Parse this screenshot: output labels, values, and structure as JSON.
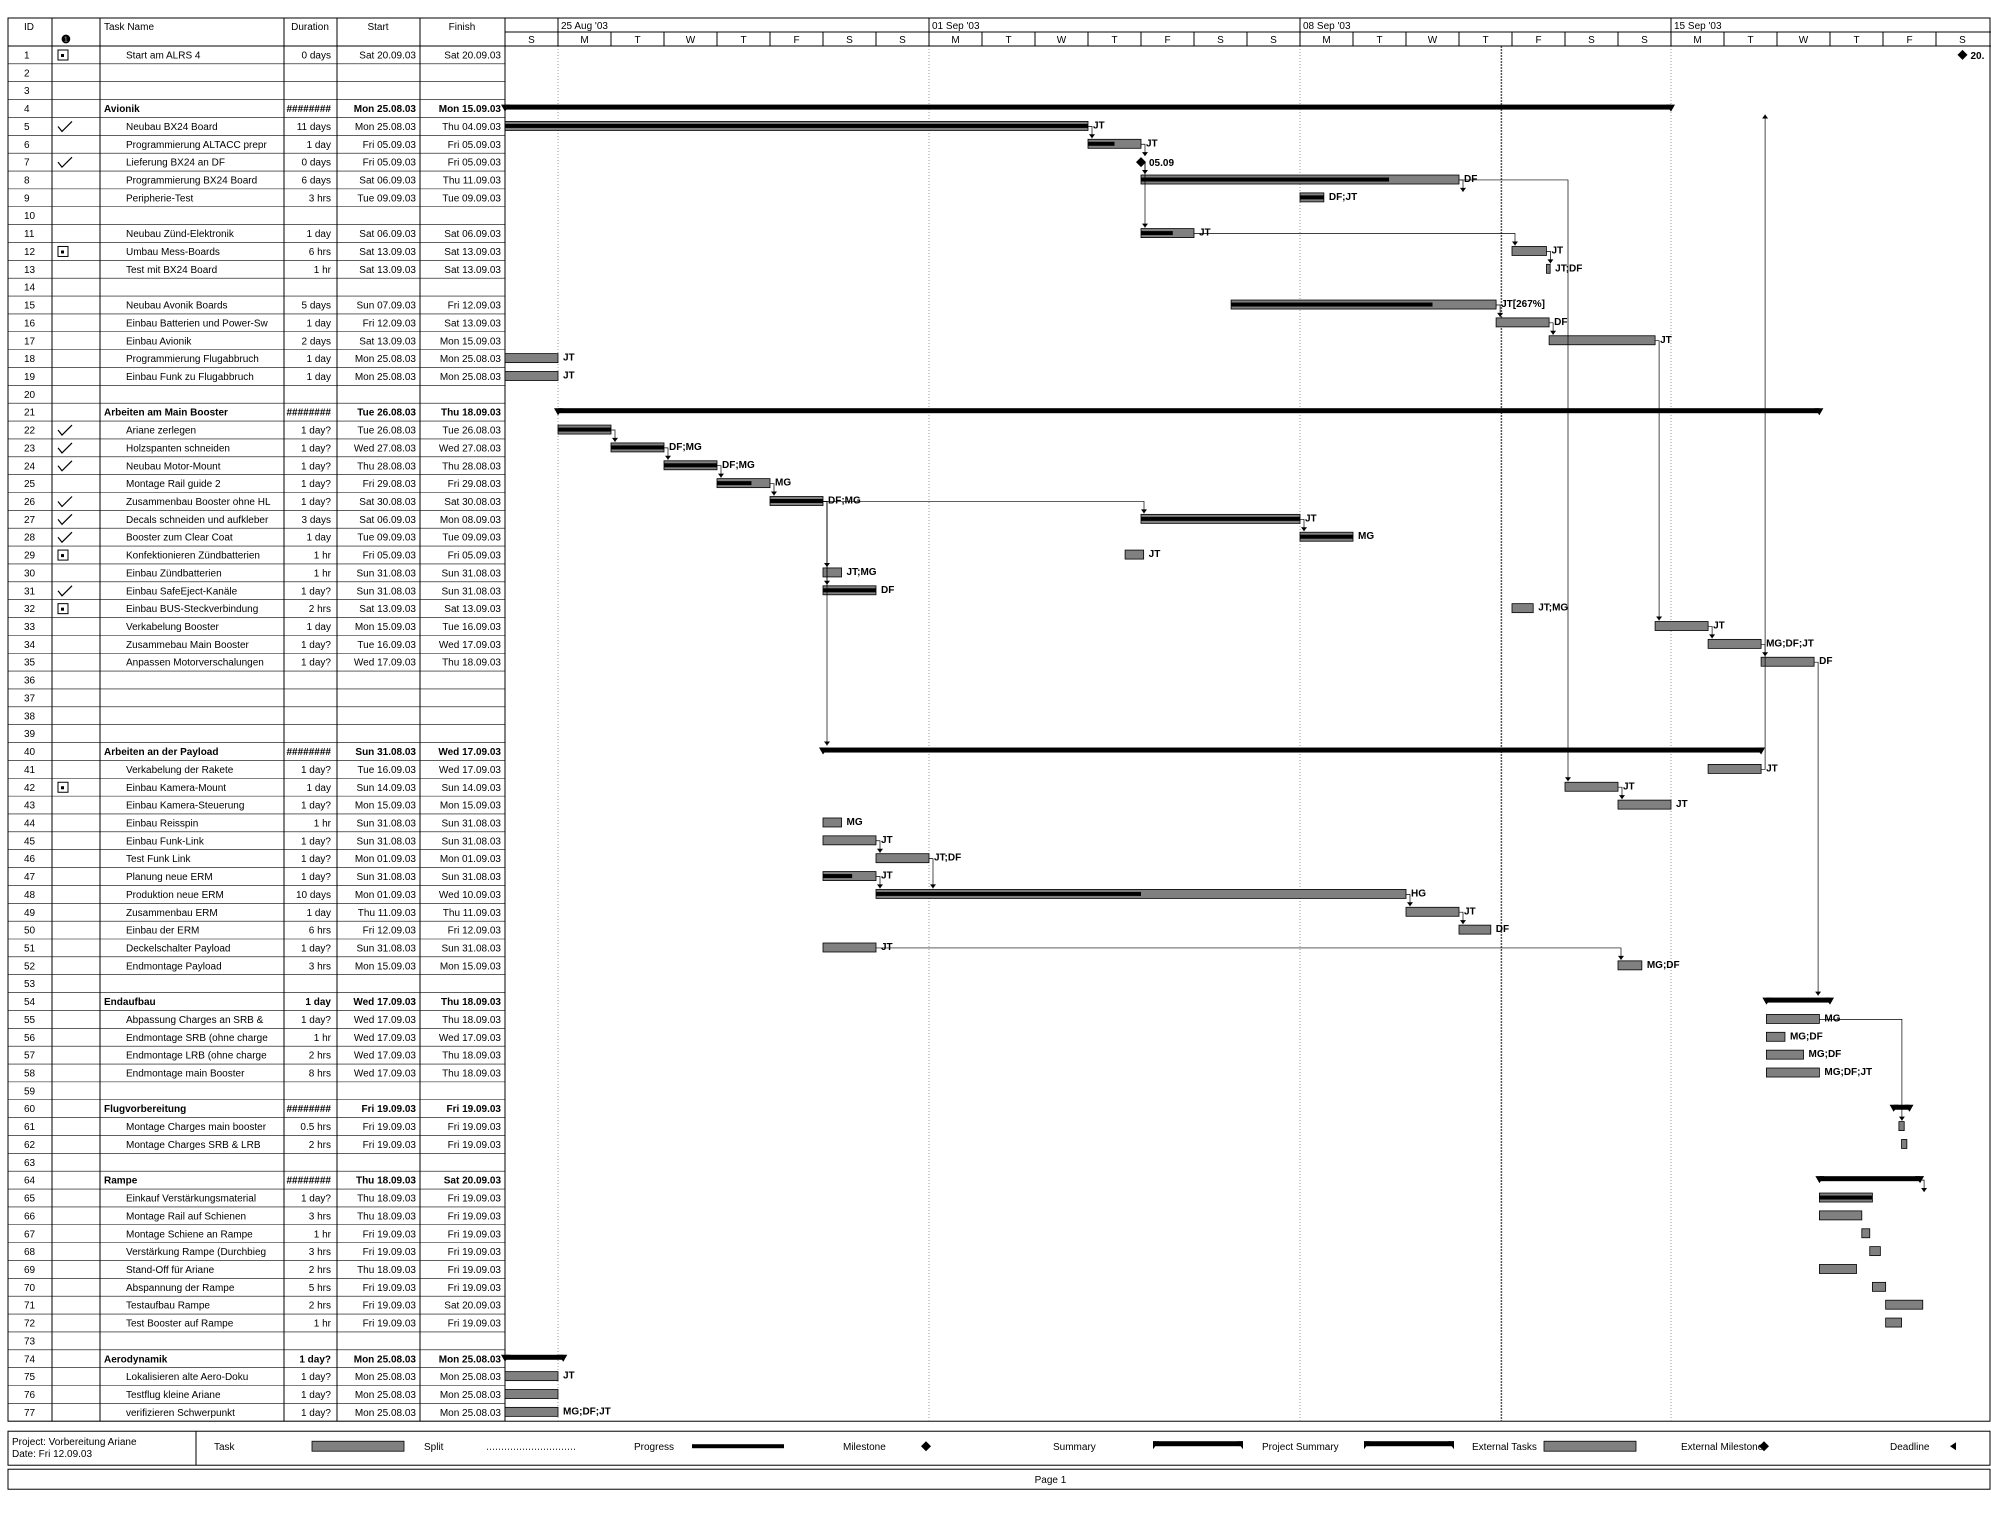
{
  "table": {
    "headers": {
      "id": "ID",
      "task": "Task Name",
      "duration": "Duration",
      "start": "Start",
      "finish": "Finish"
    }
  },
  "timescale": {
    "weeks": [
      "25 Aug '03",
      "01 Sep '03",
      "08 Sep '03",
      "15 Sep '03"
    ],
    "days": [
      "S",
      "M",
      "T",
      "W",
      "T",
      "F",
      "S",
      "S",
      "M",
      "T",
      "W",
      "T",
      "F",
      "S",
      "S",
      "M",
      "T",
      "W",
      "T",
      "F",
      "S",
      "S",
      "M",
      "T",
      "W",
      "T",
      "F",
      "S"
    ]
  },
  "rows": [
    {
      "id": "1",
      "icon": "note-icon",
      "name": "Start am ALRS 4",
      "dur": "0 days",
      "start": "Sat 20.09.03",
      "finish": "Sat 20.09.03",
      "kind": "milestone",
      "bs": 27.5,
      "label": "20."
    },
    {
      "id": "2",
      "name": ""
    },
    {
      "id": "3",
      "name": ""
    },
    {
      "id": "4",
      "name": "Avionik",
      "dur": "########",
      "start": "Mon 25.08.03",
      "finish": "Mon 15.09.03",
      "summary": true,
      "kind": "summary",
      "bs": 0,
      "be": 22
    },
    {
      "id": "5",
      "icon": "check-icon",
      "name": "Neubau BX24 Board",
      "dur": "11 days",
      "start": "Mon 25.08.03",
      "finish": "Thu 04.09.03",
      "kind": "task",
      "bs": 0,
      "be": 11,
      "prog": 1,
      "label": "JT"
    },
    {
      "id": "6",
      "name": "Programmierung ALTACC prepr",
      "dur": "1 day",
      "start": "Fri 05.09.03",
      "finish": "Fri 05.09.03",
      "kind": "task",
      "bs": 11,
      "be": 12,
      "prog": 0.5,
      "label": "JT"
    },
    {
      "id": "7",
      "icon": "check-icon",
      "name": "Lieferung BX24 an DF",
      "dur": "0 days",
      "start": "Fri 05.09.03",
      "finish": "Fri 05.09.03",
      "kind": "milestone",
      "bs": 12,
      "label": "05.09"
    },
    {
      "id": "8",
      "name": "Programmierung BX24 Board",
      "dur": "6 days",
      "start": "Sat 06.09.03",
      "finish": "Thu 11.09.03",
      "kind": "task",
      "bs": 12,
      "be": 18,
      "prog": 0.78,
      "label": "DF"
    },
    {
      "id": "9",
      "name": "Peripherie-Test",
      "dur": "3 hrs",
      "start": "Tue 09.09.03",
      "finish": "Tue 09.09.03",
      "kind": "task",
      "bs": 15,
      "be": 15.45,
      "prog": 1,
      "label": "DF;JT"
    },
    {
      "id": "10",
      "name": ""
    },
    {
      "id": "11",
      "name": "Neubau Zünd-Elektronik",
      "dur": "1 day",
      "start": "Sat 06.09.03",
      "finish": "Sat 06.09.03",
      "kind": "task",
      "bs": 12,
      "be": 13,
      "prog": 0.6,
      "label": "JT"
    },
    {
      "id": "12",
      "icon": "note-icon",
      "name": "Umbau Mess-Boards",
      "dur": "6 hrs",
      "start": "Sat 13.09.03",
      "finish": "Sat 13.09.03",
      "kind": "task",
      "bs": 19,
      "be": 19.65,
      "prog": 0,
      "label": "JT"
    },
    {
      "id": "13",
      "name": "Test mit BX24 Board",
      "dur": "1 hr",
      "start": "Sat 13.09.03",
      "finish": "Sat 13.09.03",
      "kind": "task",
      "bs": 19.65,
      "be": 19.72,
      "prog": 0,
      "label": "JT;DF"
    },
    {
      "id": "14",
      "name": ""
    },
    {
      "id": "15",
      "name": "Neubau Avonik Boards",
      "dur": "5 days",
      "start": "Sun 07.09.03",
      "finish": "Fri 12.09.03",
      "kind": "task",
      "bs": 13.7,
      "be": 18.7,
      "prog": 0.76,
      "label": "JT[267%]"
    },
    {
      "id": "16",
      "name": "Einbau Batterien und Power-Sw",
      "dur": "1 day",
      "start": "Fri 12.09.03",
      "finish": "Sat 13.09.03",
      "kind": "task",
      "bs": 18.7,
      "be": 19.7,
      "prog": 0,
      "label": "DF"
    },
    {
      "id": "17",
      "name": "Einbau Avionik",
      "dur": "2 days",
      "start": "Sat 13.09.03",
      "finish": "Mon 15.09.03",
      "kind": "task",
      "bs": 19.7,
      "be": 21.7,
      "prog": 0,
      "label": "JT"
    },
    {
      "id": "18",
      "name": "Programmierung Flugabbruch",
      "dur": "1 day",
      "start": "Mon 25.08.03",
      "finish": "Mon 25.08.03",
      "kind": "task",
      "bs": 0,
      "be": 1,
      "prog": 0,
      "label": "JT"
    },
    {
      "id": "19",
      "name": "Einbau Funk zu Flugabbruch",
      "dur": "1 day",
      "start": "Mon 25.08.03",
      "finish": "Mon 25.08.03",
      "kind": "task",
      "bs": 0,
      "be": 1,
      "prog": 0,
      "label": "JT"
    },
    {
      "id": "20",
      "name": ""
    },
    {
      "id": "21",
      "name": "Arbeiten am Main Booster",
      "dur": "########",
      "start": "Tue 26.08.03",
      "finish": "Thu 18.09.03",
      "summary": true,
      "kind": "summary",
      "bs": 1,
      "be": 24.8
    },
    {
      "id": "22",
      "icon": "check-icon",
      "name": "Ariane zerlegen",
      "dur": "1 day?",
      "start": "Tue 26.08.03",
      "finish": "Tue 26.08.03",
      "kind": "task",
      "bs": 1,
      "be": 2,
      "prog": 1,
      "label": ""
    },
    {
      "id": "23",
      "icon": "check-icon",
      "name": "Holzspanten schneiden",
      "dur": "1 day?",
      "start": "Wed 27.08.03",
      "finish": "Wed 27.08.03",
      "kind": "task",
      "bs": 2,
      "be": 3,
      "prog": 1,
      "label": "DF;MG"
    },
    {
      "id": "24",
      "icon": "check-icon",
      "name": "Neubau Motor-Mount",
      "dur": "1 day?",
      "start": "Thu 28.08.03",
      "finish": "Thu 28.08.03",
      "kind": "task",
      "bs": 3,
      "be": 4,
      "prog": 1,
      "label": "DF;MG"
    },
    {
      "id": "25",
      "name": "Montage Rail guide 2",
      "dur": "1 day?",
      "start": "Fri 29.08.03",
      "finish": "Fri 29.08.03",
      "kind": "task",
      "bs": 4,
      "be": 5,
      "prog": 0.65,
      "label": "MG"
    },
    {
      "id": "26",
      "icon": "check-icon",
      "name": "Zusammenbau Booster ohne HL",
      "dur": "1 day?",
      "start": "Sat 30.08.03",
      "finish": "Sat 30.08.03",
      "kind": "task",
      "bs": 5,
      "be": 6,
      "prog": 1,
      "label": "DF;MG"
    },
    {
      "id": "27",
      "icon": "check-icon",
      "name": "Decals schneiden und aufkleber",
      "dur": "3 days",
      "start": "Sat 06.09.03",
      "finish": "Mon 08.09.03",
      "kind": "task",
      "bs": 12,
      "be": 15,
      "prog": 1,
      "label": "JT"
    },
    {
      "id": "28",
      "icon": "check-icon",
      "name": "Booster zum Clear Coat",
      "dur": "1 day",
      "start": "Tue 09.09.03",
      "finish": "Tue 09.09.03",
      "kind": "task",
      "bs": 15,
      "be": 16,
      "prog": 1,
      "label": "MG"
    },
    {
      "id": "29",
      "icon": "note-icon",
      "name": "Konfektionieren Zündbatterien",
      "dur": "1 hr",
      "start": "Fri 05.09.03",
      "finish": "Fri 05.09.03",
      "kind": "task",
      "bs": 11.7,
      "be": 12.05,
      "prog": 0,
      "label": "JT"
    },
    {
      "id": "30",
      "name": "Einbau Zündbatterien",
      "dur": "1 hr",
      "start": "Sun 31.08.03",
      "finish": "Sun 31.08.03",
      "kind": "task",
      "bs": 6,
      "be": 6.35,
      "prog": 0,
      "label": "JT;MG"
    },
    {
      "id": "31",
      "icon": "check-icon",
      "name": "Einbau SafeEject-Kanäle",
      "dur": "1 day?",
      "start": "Sun 31.08.03",
      "finish": "Sun 31.08.03",
      "kind": "task",
      "bs": 6,
      "be": 7,
      "prog": 1,
      "label": "DF"
    },
    {
      "id": "32",
      "icon": "note-icon",
      "name": "Einbau BUS-Steckverbindung",
      "dur": "2 hrs",
      "start": "Sat 13.09.03",
      "finish": "Sat 13.09.03",
      "kind": "task",
      "bs": 19,
      "be": 19.4,
      "prog": 0,
      "label": "JT;MG"
    },
    {
      "id": "33",
      "name": "Verkabelung Booster",
      "dur": "1 day",
      "start": "Mon 15.09.03",
      "finish": "Tue 16.09.03",
      "kind": "task",
      "bs": 21.7,
      "be": 22.7,
      "prog": 0,
      "label": "JT"
    },
    {
      "id": "34",
      "name": "Zusammebau Main Booster",
      "dur": "1 day?",
      "start": "Tue 16.09.03",
      "finish": "Wed 17.09.03",
      "kind": "task",
      "bs": 22.7,
      "be": 23.7,
      "prog": 0,
      "label": "MG;DF;JT"
    },
    {
      "id": "35",
      "name": "Anpassen Motorverschalungen",
      "dur": "1 day?",
      "start": "Wed 17.09.03",
      "finish": "Thu 18.09.03",
      "kind": "task",
      "bs": 23.7,
      "be": 24.7,
      "prog": 0,
      "label": "DF"
    },
    {
      "id": "36",
      "name": ""
    },
    {
      "id": "37",
      "name": ""
    },
    {
      "id": "38",
      "name": ""
    },
    {
      "id": "39",
      "name": ""
    },
    {
      "id": "40",
      "name": "Arbeiten an der Payload",
      "dur": "########",
      "start": "Sun 31.08.03",
      "finish": "Wed 17.09.03",
      "summary": true,
      "kind": "summary",
      "bs": 6,
      "be": 23.7
    },
    {
      "id": "41",
      "name": "Verkabelung der Rakete",
      "dur": "1 day?",
      "start": "Tue 16.09.03",
      "finish": "Wed 17.09.03",
      "kind": "task",
      "bs": 22.7,
      "be": 23.7,
      "prog": 0,
      "label": "JT"
    },
    {
      "id": "42",
      "icon": "note-icon",
      "name": "Einbau Kamera-Mount",
      "dur": "1 day",
      "start": "Sun 14.09.03",
      "finish": "Sun 14.09.03",
      "kind": "task",
      "bs": 20,
      "be": 21,
      "prog": 0,
      "label": "JT"
    },
    {
      "id": "43",
      "name": "Einbau Kamera-Steuerung",
      "dur": "1 day?",
      "start": "Mon 15.09.03",
      "finish": "Mon 15.09.03",
      "kind": "task",
      "bs": 21,
      "be": 22,
      "prog": 0,
      "label": "JT"
    },
    {
      "id": "44",
      "name": "Einbau Reisspin",
      "dur": "1 hr",
      "start": "Sun 31.08.03",
      "finish": "Sun 31.08.03",
      "kind": "task",
      "bs": 6,
      "be": 6.35,
      "prog": 0,
      "label": "MG"
    },
    {
      "id": "45",
      "name": "Einbau Funk-Link",
      "dur": "1 day?",
      "start": "Sun 31.08.03",
      "finish": "Sun 31.08.03",
      "kind": "task",
      "bs": 6,
      "be": 7,
      "prog": 0,
      "label": "JT"
    },
    {
      "id": "46",
      "name": "Test Funk Link",
      "dur": "1 day?",
      "start": "Mon 01.09.03",
      "finish": "Mon 01.09.03",
      "kind": "task",
      "bs": 7,
      "be": 8,
      "prog": 0,
      "label": "JT;DF"
    },
    {
      "id": "47",
      "name": "Planung neue ERM",
      "dur": "1 day?",
      "start": "Sun 31.08.03",
      "finish": "Sun 31.08.03",
      "kind": "task",
      "bs": 6,
      "be": 7,
      "prog": 0.55,
      "label": "JT"
    },
    {
      "id": "48",
      "name": "Produktion neue ERM",
      "dur": "10 days",
      "start": "Mon 01.09.03",
      "finish": "Wed 10.09.03",
      "kind": "task",
      "bs": 7,
      "be": 17,
      "prog": 0.5,
      "label": "HG"
    },
    {
      "id": "49",
      "name": "Zusammenbau ERM",
      "dur": "1 day",
      "start": "Thu 11.09.03",
      "finish": "Thu 11.09.03",
      "kind": "task",
      "bs": 17,
      "be": 18,
      "prog": 0,
      "label": "JT"
    },
    {
      "id": "50",
      "name": "Einbau der ERM",
      "dur": "6 hrs",
      "start": "Fri 12.09.03",
      "finish": "Fri 12.09.03",
      "kind": "task",
      "bs": 18,
      "be": 18.6,
      "prog": 0,
      "label": "DF"
    },
    {
      "id": "51",
      "name": "Deckelschalter Payload",
      "dur": "1 day?",
      "start": "Sun 31.08.03",
      "finish": "Sun 31.08.03",
      "kind": "task",
      "bs": 6,
      "be": 7,
      "prog": 0,
      "label": "JT"
    },
    {
      "id": "52",
      "name": "Endmontage Payload",
      "dur": "3 hrs",
      "start": "Mon 15.09.03",
      "finish": "Mon 15.09.03",
      "kind": "task",
      "bs": 21,
      "be": 21.45,
      "prog": 0,
      "label": "MG;DF"
    },
    {
      "id": "53",
      "name": ""
    },
    {
      "id": "54",
      "name": "Endaufbau",
      "dur": "1 day",
      "start": "Wed 17.09.03",
      "finish": "Thu 18.09.03",
      "summary": true,
      "kind": "summary",
      "bs": 23.8,
      "be": 25
    },
    {
      "id": "55",
      "name": "Abpassung Charges an SRB &",
      "dur": "1 day?",
      "start": "Wed 17.09.03",
      "finish": "Thu 18.09.03",
      "kind": "task",
      "bs": 23.8,
      "be": 24.8,
      "prog": 0,
      "label": "MG"
    },
    {
      "id": "56",
      "name": "Endmontage SRB (ohne charge",
      "dur": "1 hr",
      "start": "Wed 17.09.03",
      "finish": "Wed 17.09.03",
      "kind": "task",
      "bs": 23.8,
      "be": 24.15,
      "prog": 0,
      "label": "MG;DF"
    },
    {
      "id": "57",
      "name": "Endmontage LRB (ohne charge",
      "dur": "2 hrs",
      "start": "Wed 17.09.03",
      "finish": "Thu 18.09.03",
      "kind": "task",
      "bs": 23.8,
      "be": 24.5,
      "prog": 0,
      "label": "MG;DF"
    },
    {
      "id": "58",
      "name": "Endmontage main Booster",
      "dur": "8 hrs",
      "start": "Wed 17.09.03",
      "finish": "Thu 18.09.03",
      "kind": "task",
      "bs": 23.8,
      "be": 24.8,
      "prog": 0,
      "label": "MG;DF;JT"
    },
    {
      "id": "59",
      "name": ""
    },
    {
      "id": "60",
      "name": "Flugvorbereitung",
      "dur": "########",
      "start": "Fri 19.09.03",
      "finish": "Fri 19.09.03",
      "summary": true,
      "kind": "summary",
      "bs": 26.2,
      "be": 26.5
    },
    {
      "id": "61",
      "name": "Montage Charges main booster",
      "dur": "0.5 hrs",
      "start": "Fri 19.09.03",
      "finish": "Fri 19.09.03",
      "kind": "task",
      "bs": 26.3,
      "be": 26.4,
      "prog": 0,
      "label": ""
    },
    {
      "id": "62",
      "name": "Montage Charges SRB & LRB",
      "dur": "2 hrs",
      "start": "Fri 19.09.03",
      "finish": "Fri 19.09.03",
      "kind": "task",
      "bs": 26.35,
      "be": 26.45,
      "prog": 0,
      "label": ""
    },
    {
      "id": "63",
      "name": ""
    },
    {
      "id": "64",
      "name": "Rampe",
      "dur": "########",
      "start": "Thu 18.09.03",
      "finish": "Sat 20.09.03",
      "summary": true,
      "kind": "summary",
      "bs": 24.8,
      "be": 26.7
    },
    {
      "id": "65",
      "name": "Einkauf Verstärkungsmaterial",
      "dur": "1 day?",
      "start": "Thu 18.09.03",
      "finish": "Fri 19.09.03",
      "kind": "task",
      "bs": 24.8,
      "be": 25.8,
      "prog": 1,
      "label": ""
    },
    {
      "id": "66",
      "name": "Montage Rail auf Schienen",
      "dur": "3 hrs",
      "start": "Thu 18.09.03",
      "finish": "Fri 19.09.03",
      "kind": "task",
      "bs": 24.8,
      "be": 25.6,
      "prog": 0,
      "label": ""
    },
    {
      "id": "67",
      "name": "Montage Schiene an Rampe",
      "dur": "1 hr",
      "start": "Fri 19.09.03",
      "finish": "Fri 19.09.03",
      "kind": "task",
      "bs": 25.6,
      "be": 25.75,
      "prog": 0,
      "label": ""
    },
    {
      "id": "68",
      "name": "Verstärkung Rampe (Durchbieg",
      "dur": "3 hrs",
      "start": "Fri 19.09.03",
      "finish": "Fri 19.09.03",
      "kind": "task",
      "bs": 25.75,
      "be": 25.95,
      "prog": 0,
      "label": ""
    },
    {
      "id": "69",
      "name": "Stand-Off für Ariane",
      "dur": "2 hrs",
      "start": "Thu 18.09.03",
      "finish": "Fri 19.09.03",
      "kind": "task",
      "bs": 24.8,
      "be": 25.5,
      "prog": 0,
      "label": ""
    },
    {
      "id": "70",
      "name": "Abspannung der Rampe",
      "dur": "5 hrs",
      "start": "Fri 19.09.03",
      "finish": "Fri 19.09.03",
      "kind": "task",
      "bs": 25.8,
      "be": 26.05,
      "prog": 0,
      "label": ""
    },
    {
      "id": "71",
      "name": "Testaufbau Rampe",
      "dur": "2 hrs",
      "start": "Fri 19.09.03",
      "finish": "Sat 20.09.03",
      "kind": "task",
      "bs": 26.05,
      "be": 26.75,
      "prog": 0,
      "label": ""
    },
    {
      "id": "72",
      "name": "Test Booster auf Rampe",
      "dur": "1 hr",
      "start": "Fri 19.09.03",
      "finish": "Fri 19.09.03",
      "kind": "task",
      "bs": 26.05,
      "be": 26.35,
      "prog": 0,
      "label": ""
    },
    {
      "id": "73",
      "name": ""
    },
    {
      "id": "74",
      "name": "Aerodynamik",
      "dur": "1 day?",
      "start": "Mon 25.08.03",
      "finish": "Mon 25.08.03",
      "summary": true,
      "kind": "summary",
      "bs": 0,
      "be": 1.1
    },
    {
      "id": "75",
      "name": "Lokalisieren alte Aero-Doku",
      "dur": "1 day?",
      "start": "Mon 25.08.03",
      "finish": "Mon 25.08.03",
      "kind": "task",
      "bs": 0,
      "be": 1,
      "prog": 0,
      "label": "JT"
    },
    {
      "id": "76",
      "name": "Testflug kleine Ariane",
      "dur": "1 day?",
      "start": "Mon 25.08.03",
      "finish": "Mon 25.08.03",
      "kind": "task",
      "bs": 0,
      "be": 1,
      "prog": 0,
      "label": ""
    },
    {
      "id": "77",
      "name": "verifizieren Schwerpunkt",
      "dur": "1 day?",
      "start": "Mon 25.08.03",
      "finish": "Mon 25.08.03",
      "kind": "task",
      "bs": 0,
      "be": 1,
      "prog": 0,
      "label": "MG;DF;JT"
    }
  ],
  "links": [
    [
      5,
      6
    ],
    [
      6,
      7
    ],
    [
      7,
      8
    ],
    [
      8,
      9
    ],
    [
      7,
      11
    ],
    [
      11,
      12
    ],
    [
      12,
      13
    ],
    [
      15,
      16
    ],
    [
      16,
      17
    ],
    [
      22,
      23
    ],
    [
      23,
      24
    ],
    [
      24,
      25
    ],
    [
      25,
      26
    ],
    [
      26,
      30
    ],
    [
      26,
      31
    ],
    [
      26,
      27
    ],
    [
      27,
      28
    ],
    [
      26,
      40
    ],
    [
      17,
      33
    ],
    [
      33,
      34
    ],
    [
      34,
      35
    ],
    [
      8,
      42
    ],
    [
      42,
      43
    ],
    [
      41,
      4
    ],
    [
      46,
      48
    ],
    [
      47,
      48
    ],
    [
      48,
      49
    ],
    [
      49,
      50
    ],
    [
      51,
      52
    ],
    [
      45,
      46
    ],
    [
      55,
      61
    ],
    [
      35,
      54
    ],
    [
      64,
      65
    ]
  ],
  "legend": {
    "project": "Project: Vorbereitung Ariane",
    "date": "Date: Fri 12.09.03",
    "items": [
      {
        "label": "Task",
        "sym": "task"
      },
      {
        "label": "Split",
        "sym": "split"
      },
      {
        "label": "Progress",
        "sym": "progress"
      },
      {
        "label": "Milestone",
        "sym": "milestone"
      },
      {
        "label": "Summary",
        "sym": "summary"
      },
      {
        "label": "Project Summary",
        "sym": "summary"
      },
      {
        "label": "External Tasks",
        "sym": "task"
      },
      {
        "label": "External Milestone",
        "sym": "milestone"
      },
      {
        "label": "Deadline",
        "sym": "deadline"
      }
    ]
  },
  "footer": {
    "page": "Page 1"
  },
  "colors": {
    "bar": "#808080",
    "progress": "#000000",
    "grid": "#000000"
  },
  "chart_data": {
    "type": "gantt",
    "x_unit": "days",
    "x_start": "Sun 24.08.03",
    "x_range": [
      0,
      28
    ]
  }
}
